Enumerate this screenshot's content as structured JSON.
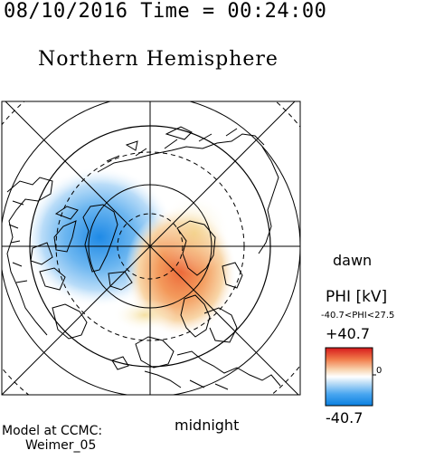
{
  "header": {
    "datetime": "08/10/2016 Time = 00:24:00"
  },
  "map": {
    "title": "Northern Hemisphere",
    "projection": "polar-stereographic",
    "orientation_labels": {
      "right": "dawn",
      "bottom": "midnight"
    },
    "colors": {
      "negative": "#2f8ff0",
      "positive": "#f0803a",
      "coast": "#000000"
    }
  },
  "colorbar": {
    "label": "PHI [kV]",
    "range_text": "-40.7<PHI<27.5",
    "max_label": "+40.7",
    "min_label": "-40.7",
    "mid_tick": "0"
  },
  "footer": {
    "model_line1": "Model at CCMC:",
    "model_line2": "Weimer_05"
  }
}
